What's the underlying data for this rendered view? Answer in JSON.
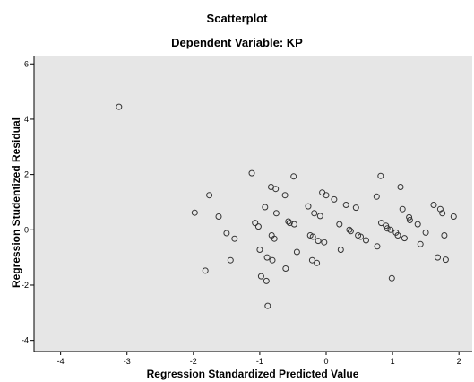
{
  "chart_data": {
    "type": "scatter",
    "title": "Scatterplot",
    "subtitle": "Dependent Variable: KP",
    "xlabel": "Regression Standardized Predicted Value",
    "ylabel": "Regression Studentized Residual",
    "xlim": [
      -4.4,
      2.2
    ],
    "ylim": [
      -4.4,
      6.3
    ],
    "xticks": [
      -4,
      -3,
      -2,
      -1,
      0,
      1,
      2
    ],
    "yticks": [
      -4,
      -2,
      0,
      2,
      4,
      6
    ],
    "grid": false,
    "background_color": "#e6e6e6",
    "marker": "open-circle",
    "marker_color": "#333333",
    "points": [
      [
        -3.12,
        4.45
      ],
      [
        -1.98,
        0.62
      ],
      [
        -1.82,
        -1.48
      ],
      [
        -1.76,
        1.25
      ],
      [
        -1.62,
        0.48
      ],
      [
        -1.5,
        -0.12
      ],
      [
        -1.44,
        -1.1
      ],
      [
        -1.38,
        -0.32
      ],
      [
        -1.12,
        2.05
      ],
      [
        -1.07,
        0.25
      ],
      [
        -1.02,
        0.12
      ],
      [
        -1.0,
        -0.72
      ],
      [
        -0.98,
        -1.68
      ],
      [
        -0.92,
        0.82
      ],
      [
        -0.9,
        -1.85
      ],
      [
        -0.89,
        -1.0
      ],
      [
        -0.88,
        -2.75
      ],
      [
        -0.83,
        1.55
      ],
      [
        -0.82,
        -0.2
      ],
      [
        -0.81,
        -1.1
      ],
      [
        -0.78,
        -0.32
      ],
      [
        -0.76,
        1.48
      ],
      [
        -0.75,
        0.6
      ],
      [
        -0.62,
        1.25
      ],
      [
        -0.61,
        -1.4
      ],
      [
        -0.57,
        0.3
      ],
      [
        -0.55,
        0.25
      ],
      [
        -0.49,
        1.93
      ],
      [
        -0.48,
        0.2
      ],
      [
        -0.44,
        -0.8
      ],
      [
        -0.27,
        0.85
      ],
      [
        -0.24,
        -0.2
      ],
      [
        -0.21,
        -1.1
      ],
      [
        -0.2,
        -0.25
      ],
      [
        -0.18,
        0.6
      ],
      [
        -0.14,
        -1.2
      ],
      [
        -0.12,
        -0.4
      ],
      [
        -0.09,
        0.5
      ],
      [
        -0.06,
        1.35
      ],
      [
        -0.03,
        -0.45
      ],
      [
        0.0,
        1.25
      ],
      [
        0.12,
        1.1
      ],
      [
        0.2,
        0.2
      ],
      [
        0.22,
        -0.72
      ],
      [
        0.3,
        0.9
      ],
      [
        0.35,
        0.0
      ],
      [
        0.37,
        -0.05
      ],
      [
        0.45,
        0.8
      ],
      [
        0.48,
        -0.2
      ],
      [
        0.52,
        -0.25
      ],
      [
        0.6,
        -0.38
      ],
      [
        0.76,
        1.2
      ],
      [
        0.77,
        -0.6
      ],
      [
        0.82,
        1.95
      ],
      [
        0.83,
        0.25
      ],
      [
        0.9,
        0.15
      ],
      [
        0.92,
        0.05
      ],
      [
        0.97,
        0.0
      ],
      [
        0.99,
        -1.75
      ],
      [
        1.05,
        -0.1
      ],
      [
        1.08,
        -0.2
      ],
      [
        1.12,
        1.55
      ],
      [
        1.15,
        0.75
      ],
      [
        1.18,
        -0.3
      ],
      [
        1.25,
        0.45
      ],
      [
        1.26,
        0.35
      ],
      [
        1.38,
        0.2
      ],
      [
        1.42,
        -0.52
      ],
      [
        1.5,
        -0.1
      ],
      [
        1.62,
        0.9
      ],
      [
        1.68,
        -1.0
      ],
      [
        1.72,
        0.75
      ],
      [
        1.75,
        0.6
      ],
      [
        1.78,
        -0.2
      ],
      [
        1.8,
        -1.08
      ],
      [
        1.92,
        0.48
      ]
    ]
  }
}
